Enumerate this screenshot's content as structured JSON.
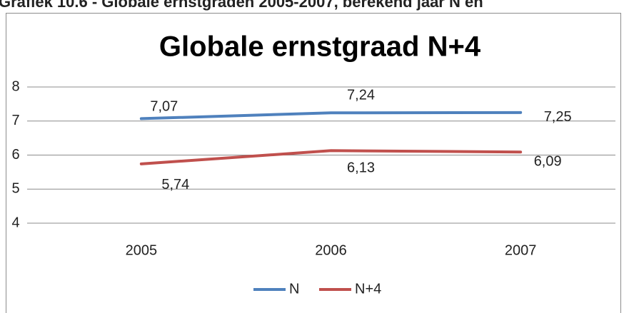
{
  "caption": "Grafiek 10.6 - Globale ernstgraden 2005-2007, berekend jaar N en",
  "chart_data": {
    "type": "line",
    "title": "Globale ernstgraad N+4",
    "categories": [
      "2005",
      "2006",
      "2007"
    ],
    "series": [
      {
        "name": "N",
        "color": "#4f81bd",
        "values": [
          7.07,
          7.24,
          7.25
        ],
        "value_labels": [
          "7,07",
          "7,24",
          "7,25"
        ]
      },
      {
        "name": "N+4",
        "color": "#c0504d",
        "values": [
          5.74,
          6.13,
          6.09
        ],
        "value_labels": [
          "5,74",
          "6,13",
          "6,09"
        ]
      }
    ],
    "ylim": [
      4,
      8
    ],
    "yticks": [
      4,
      5,
      6,
      7,
      8
    ],
    "grid": true,
    "legend": "bottom"
  }
}
